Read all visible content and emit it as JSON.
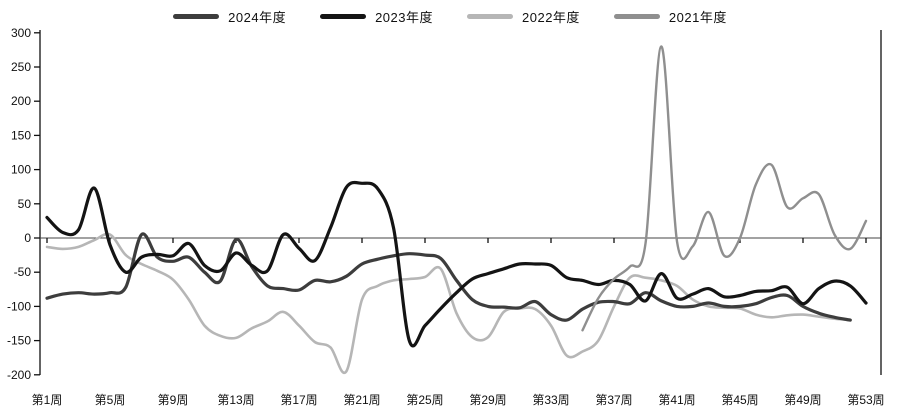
{
  "chart_data": {
    "type": "line",
    "title": "",
    "xlabel": "",
    "ylabel": "",
    "ylim": [
      -200,
      300
    ],
    "xlim": [
      1,
      53
    ],
    "grid": false,
    "legend_position": "top-center",
    "y_ticks": [
      300,
      250,
      200,
      150,
      100,
      50,
      0,
      -50,
      -100,
      -150,
      -200
    ],
    "x_ticks": [
      {
        "week": 1,
        "label": "第1周"
      },
      {
        "week": 5,
        "label": "第5周"
      },
      {
        "week": 9,
        "label": "第9周"
      },
      {
        "week": 13,
        "label": "第13周"
      },
      {
        "week": 17,
        "label": "第17周"
      },
      {
        "week": 21,
        "label": "第21周"
      },
      {
        "week": 25,
        "label": "第25周"
      },
      {
        "week": 29,
        "label": "第29周"
      },
      {
        "week": 33,
        "label": "第33周"
      },
      {
        "week": 37,
        "label": "第37周"
      },
      {
        "week": 41,
        "label": "第41周"
      },
      {
        "week": 45,
        "label": "第45周"
      },
      {
        "week": 49,
        "label": "第49周"
      },
      {
        "week": 53,
        "label": "第53周"
      }
    ],
    "series": [
      {
        "name": "2024年度",
        "color": "#3d3d3d",
        "line_width": 3.2,
        "start_week": 1,
        "values": [
          -88,
          -82,
          -80,
          -82,
          -80,
          -72,
          5,
          -28,
          -34,
          -28,
          -50,
          -63,
          -2,
          -42,
          -70,
          -74,
          -76,
          -62,
          -64,
          -56,
          -38,
          -31,
          -26,
          -23,
          -25,
          -30,
          -62,
          -90,
          -100,
          -101,
          -102,
          -93,
          -112,
          -120,
          -104,
          -94,
          -93,
          -96,
          -80,
          -92,
          -100,
          -100,
          -95,
          -100,
          -100,
          -96,
          -87,
          -84,
          -100,
          -110,
          -116,
          -120
        ]
      },
      {
        "name": "2023年度",
        "color": "#141414",
        "line_width": 3.2,
        "start_week": 1,
        "values": [
          30,
          8,
          12,
          73,
          -10,
          -50,
          -28,
          -24,
          -26,
          -8,
          -40,
          -48,
          -22,
          -40,
          -48,
          5,
          -15,
          -33,
          15,
          74,
          80,
          72,
          15,
          -150,
          -128,
          -103,
          -80,
          -60,
          -52,
          -45,
          -38,
          -38,
          -40,
          -58,
          -62,
          -68,
          -62,
          -68,
          -92,
          -52,
          -88,
          -82,
          -74,
          -86,
          -84,
          -78,
          -77,
          -72,
          -96,
          -74,
          -63,
          -70,
          -95
        ]
      },
      {
        "name": "2022年度",
        "color": "#b6b6b6",
        "line_width": 2.6,
        "start_week": 1,
        "values": [
          -13,
          -16,
          -13,
          -3,
          5,
          -25,
          -38,
          -48,
          -61,
          -90,
          -128,
          -143,
          -146,
          -132,
          -122,
          -108,
          -128,
          -152,
          -160,
          -195,
          -90,
          -70,
          -62,
          -60,
          -57,
          -45,
          -110,
          -145,
          -145,
          -108,
          -103,
          -104,
          -128,
          -172,
          -166,
          -150,
          -100,
          -58,
          -58,
          -62,
          -70,
          -90,
          -100,
          -102,
          -103,
          -112,
          -116,
          -113,
          -112,
          -115,
          -118,
          -120
        ]
      },
      {
        "name": "2021年度",
        "color": "#8f8f8f",
        "line_width": 2.4,
        "start_week": 35,
        "values": [
          -135,
          -88,
          -60,
          -42,
          -8,
          280,
          -5,
          -12,
          38,
          -26,
          0,
          78,
          107,
          45,
          58,
          64,
          5,
          -16,
          25
        ]
      }
    ]
  },
  "legend_order": [
    "2024年度",
    "2023年度",
    "2022年度",
    "2021年度"
  ]
}
